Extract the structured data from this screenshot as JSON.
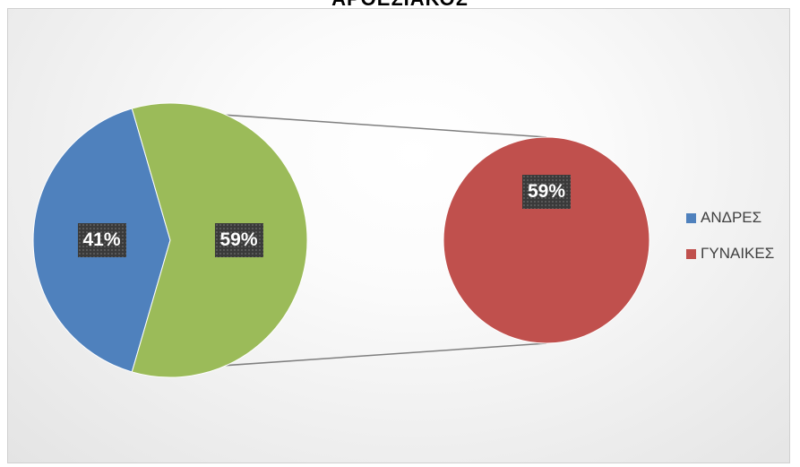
{
  "chart_data": {
    "type": "pie",
    "subtype": "pie-of-pie",
    "title": "ΑΡΘΕΣΙΑΚΟΣ",
    "categories": [
      "ΑΝΔΡΕΣ",
      "ΓΥΝΑΙΚΕΣ"
    ],
    "values": [
      41,
      59
    ],
    "unit": "%",
    "colors": {
      "ΑΝΔΡΕΣ": "#4f81bd",
      "ΓΥΝΑΙΚΕΣ": "#c0504d",
      "secondary_group": "#9bbb59",
      "connector": "#7f7f7f"
    },
    "primary_pie": {
      "slices": [
        {
          "name": "ΑΝΔΡΕΣ",
          "value": 41,
          "label": "41%",
          "color": "#4f81bd"
        },
        {
          "name": "",
          "value": 59,
          "label": "59%",
          "color": "#9bbb59"
        }
      ]
    },
    "secondary_pie": {
      "slices": [
        {
          "name": "ΓΥΝΑΙΚΕΣ",
          "value": 59,
          "label": "59%",
          "color": "#c0504d"
        }
      ]
    },
    "legend": {
      "position": "right",
      "entries": [
        {
          "label": "ΑΝΔΡΕΣ",
          "color": "#4f81bd"
        },
        {
          "label": "ΓΥΝΑΙΚΕΣ",
          "color": "#c0504d"
        }
      ]
    }
  }
}
